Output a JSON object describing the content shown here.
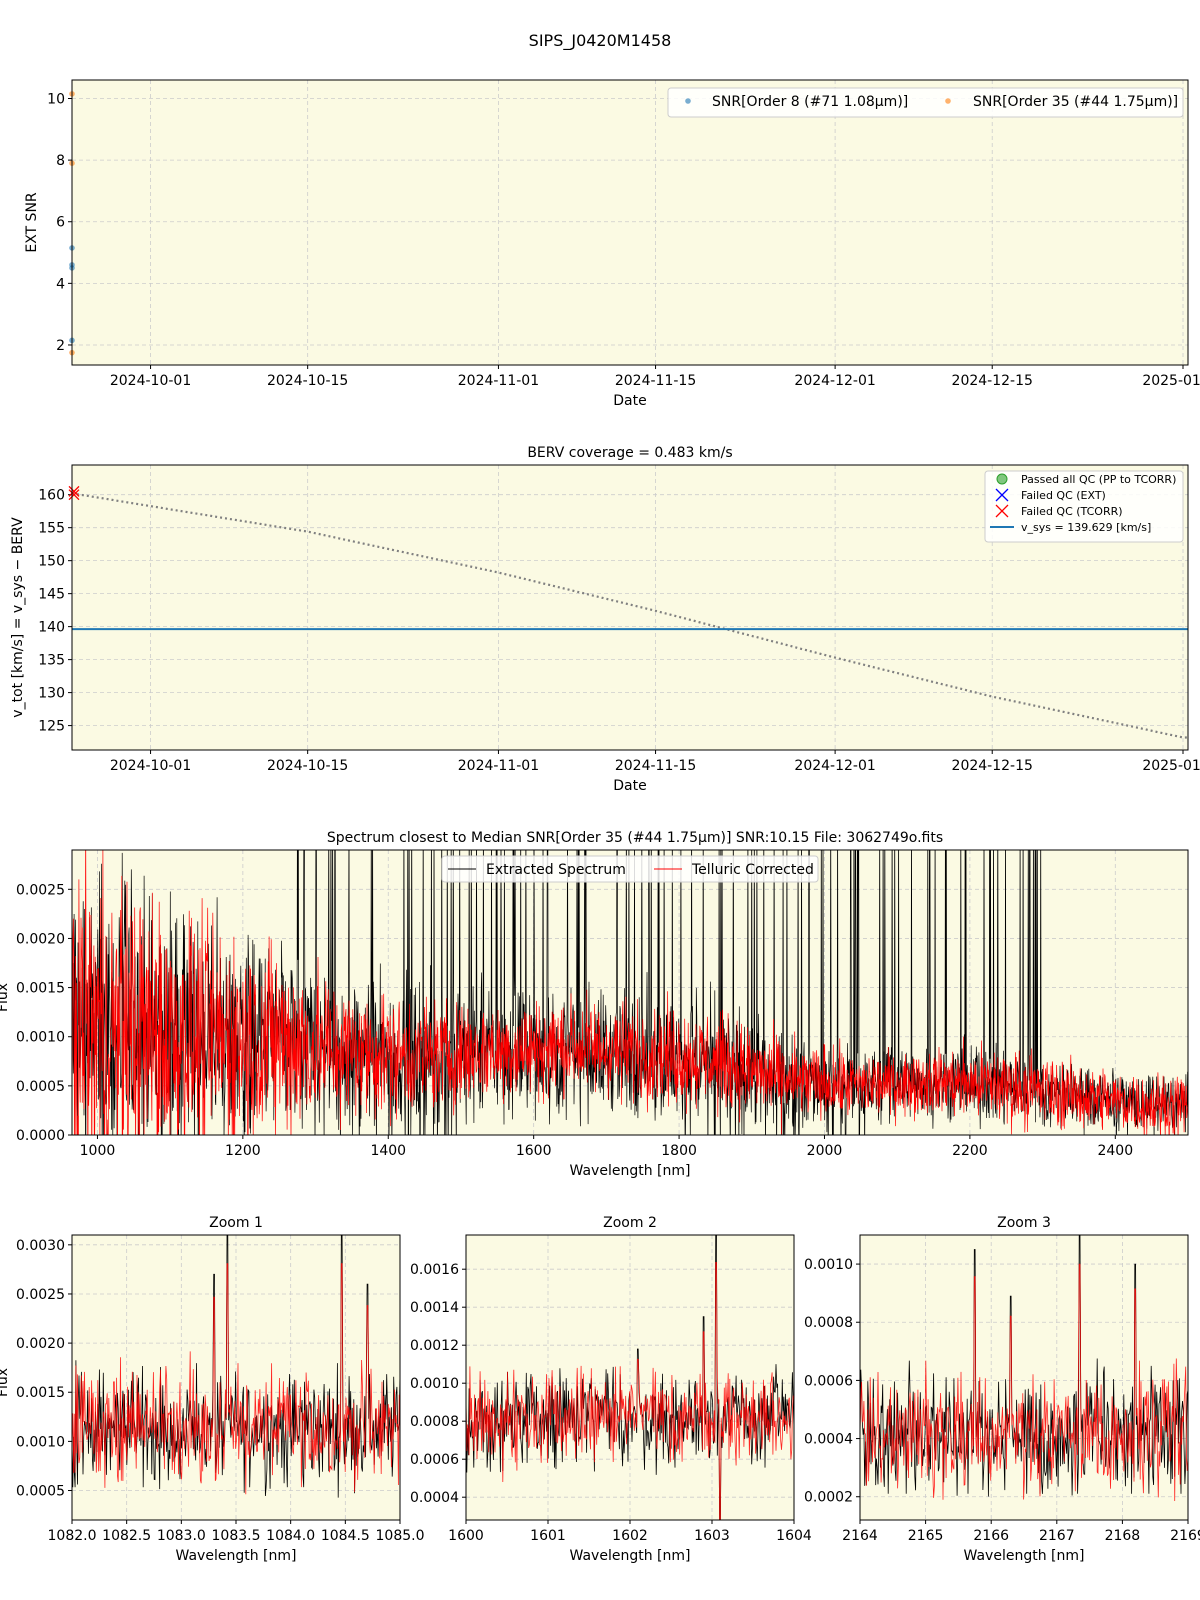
{
  "figure_title": "SIPS_J0420M1458",
  "colors": {
    "axes_bg": "#fbfae3",
    "grid": "#cccccc",
    "snr_order8": "#1f77b4",
    "snr_order35": "#ff7f0e",
    "vsys_line": "#1f77b4",
    "berv_curve": "#808080",
    "extracted": "#000000",
    "telluric": "#ff0000",
    "passed_qc": "#2ca02c",
    "failed_ext": "#0000ff",
    "failed_tcorr": "#ff0000"
  },
  "chart_data": [
    {
      "id": "snr",
      "type": "scatter",
      "title": "",
      "xlabel": "Date",
      "ylabel": "EXT SNR",
      "x_range": [
        "2024-09-24",
        "2025-01-01"
      ],
      "ylim": [
        1.35,
        10.6
      ],
      "x_ticks": [
        "2024-10-01",
        "2024-10-15",
        "2024-11-01",
        "2024-11-15",
        "2024-12-01",
        "2024-12-15",
        "2025-01-01"
      ],
      "x_tick_labels": [
        "2024-10-01",
        "2024-10-15",
        "2024-11-01",
        "2024-11-15",
        "2024-12-01",
        "2024-12-15",
        "2025-01-01"
      ],
      "y_ticks": [
        2,
        4,
        6,
        8,
        10
      ],
      "grid": true,
      "legend_position": "top-right",
      "series": [
        {
          "name": "SNR[Order 8 (#71 1.08μm)]",
          "color": "#1f77b4",
          "x": [
            "2024-09-24",
            "2024-09-24",
            "2024-09-24",
            "2024-09-24"
          ],
          "y": [
            5.15,
            4.6,
            4.5,
            2.15
          ]
        },
        {
          "name": "SNR[Order 35 (#44 1.75μm)]",
          "color": "#ff7f0e",
          "x": [
            "2024-09-24",
            "2024-09-24",
            "2024-09-24"
          ],
          "y": [
            10.15,
            7.9,
            1.75
          ]
        }
      ]
    },
    {
      "id": "berv",
      "type": "line",
      "title": "BERV coverage = 0.483 km/s",
      "xlabel": "Date",
      "ylabel": "v_tot [km/s] = v_sys − BERV",
      "x_range": [
        "2024-09-24",
        "2025-01-01"
      ],
      "ylim": [
        121.3,
        164.5
      ],
      "x_ticks": [
        "2024-10-01",
        "2024-10-15",
        "2024-11-01",
        "2024-11-15",
        "2024-12-01",
        "2024-12-15",
        "2025-01-01"
      ],
      "x_tick_labels": [
        "2024-10-01",
        "2024-10-15",
        "2024-11-01",
        "2024-11-15",
        "2024-12-01",
        "2024-12-15",
        "2025-01-01"
      ],
      "y_ticks": [
        125,
        130,
        135,
        140,
        145,
        150,
        155,
        160
      ],
      "grid": true,
      "legend_position": "top-right",
      "legend": [
        "Passed all QC (PP to TCORR)",
        "Failed QC (EXT)",
        "Failed QC (TCORR)",
        "v_sys = 139.629 [km/s]"
      ],
      "vsys": 139.629,
      "berv_curve": {
        "x": [
          "2024-09-24",
          "2024-10-15",
          "2024-11-01",
          "2024-11-15",
          "2024-12-01",
          "2024-12-15",
          "2025-01-01"
        ],
        "y": [
          160.2,
          154.4,
          148.2,
          142.4,
          135.3,
          129.4,
          123.2
        ]
      },
      "failed_tcorr_points": {
        "x": [
          "2024-09-24",
          "2024-09-24"
        ],
        "y": [
          160.5,
          160.0
        ]
      }
    },
    {
      "id": "spectrum",
      "type": "line",
      "title": "Spectrum closest to Median SNR[Order 35 (#44 1.75μm)]     SNR:10.15     File: 3062749o.fits",
      "xlabel": "Wavelength [nm]",
      "ylabel": "Flux",
      "xlim": [
        965,
        2500
      ],
      "ylim": [
        0,
        0.0029
      ],
      "x_ticks": [
        1000,
        1200,
        1400,
        1600,
        1800,
        2000,
        2200,
        2400
      ],
      "y_ticks": [
        0.0,
        0.0005,
        0.001,
        0.0015,
        0.002,
        0.0025
      ],
      "y_tick_labels": [
        "0.0000",
        "0.0005",
        "0.0010",
        "0.0015",
        "0.0020",
        "0.0025"
      ],
      "grid": true,
      "legend_position": "top-center",
      "series": [
        {
          "name": "Extracted Spectrum",
          "color": "#000000",
          "x": [
            965,
            1100,
            1250,
            1350,
            1450,
            1550,
            1650,
            1750,
            1850,
            1950,
            2050,
            2150,
            2250,
            2350,
            2450,
            2490
          ],
          "mean": [
            0.0011,
            0.001,
            0.00095,
            0.0008,
            0.00078,
            0.00085,
            0.00085,
            0.0008,
            0.0007,
            0.00055,
            0.0005,
            0.00055,
            0.0005,
            0.0004,
            0.0003,
            0.0003
          ],
          "spread": [
            0.0011,
            0.0008,
            0.0006,
            0.0005,
            0.00045,
            0.0004,
            0.0004,
            0.0004,
            0.0004,
            0.0003,
            0.00025,
            0.00025,
            0.00025,
            0.0002,
            0.0002,
            0.0002
          ]
        },
        {
          "name": "Telluric Corrected",
          "color": "#ff0000",
          "x": [
            965,
            1100,
            1250,
            1350,
            1450,
            1550,
            1650,
            1750,
            1850,
            1950,
            2050,
            2150,
            2250,
            2350,
            2450,
            2490
          ],
          "mean": [
            0.0011,
            0.001,
            0.00095,
            0.00085,
            0.0008,
            0.00085,
            0.0009,
            0.00085,
            0.00075,
            0.00055,
            0.0005,
            0.00055,
            0.0005,
            0.0004,
            0.0003,
            0.0003
          ],
          "spread": [
            0.0011,
            0.0008,
            0.0006,
            0.0004,
            0.00035,
            0.0003,
            0.0003,
            0.0003,
            0.0003,
            0.00025,
            0.0002,
            0.0002,
            0.00025,
            0.0002,
            0.0002,
            0.0002
          ]
        }
      ]
    },
    {
      "id": "zoom1",
      "type": "line",
      "title": "Zoom 1",
      "xlabel": "Wavelength [nm]",
      "ylabel": "Flux",
      "xlim": [
        1082.0,
        1085.0
      ],
      "ylim": [
        0.0002,
        0.0031
      ],
      "x_ticks": [
        1082.0,
        1082.5,
        1083.0,
        1083.5,
        1084.0,
        1084.5,
        1085.0
      ],
      "x_tick_labels": [
        "1082.0",
        "1082.5",
        "1083.0",
        "1083.5",
        "1084.0",
        "1084.5",
        "1085.0"
      ],
      "y_ticks": [
        0.0005,
        0.001,
        0.0015,
        0.002,
        0.0025,
        0.003
      ],
      "y_tick_labels": [
        "0.0005",
        "0.0010",
        "0.0015",
        "0.0020",
        "0.0025",
        "0.0030"
      ],
      "grid": true,
      "mean": 0.00115,
      "spread": 0.00028,
      "peaks": [
        [
          1083.3,
          0.0027
        ],
        [
          1083.42,
          0.0031
        ],
        [
          1084.47,
          0.0031
        ],
        [
          1084.7,
          0.0026
        ]
      ]
    },
    {
      "id": "zoom2",
      "type": "line",
      "title": "Zoom 2",
      "xlabel": "Wavelength [nm]",
      "ylabel": "",
      "xlim": [
        1600,
        1604
      ],
      "ylim": [
        0.00028,
        0.00178
      ],
      "x_ticks": [
        1600,
        1601,
        1602,
        1603,
        1604
      ],
      "x_tick_labels": [
        "1600",
        "1601",
        "1602",
        "1603",
        "1604"
      ],
      "y_ticks": [
        0.0004,
        0.0006,
        0.0008,
        0.001,
        0.0012,
        0.0014,
        0.0016
      ],
      "y_tick_labels": [
        "0.0004",
        "0.0006",
        "0.0008",
        "0.0010",
        "0.0012",
        "0.0014",
        "0.0016"
      ],
      "grid": true,
      "mean": 0.00082,
      "spread": 0.00012,
      "peaks": [
        [
          1602.1,
          0.00118
        ],
        [
          1602.9,
          0.00135
        ],
        [
          1603.05,
          0.00178
        ],
        [
          1603.1,
          0.00028
        ]
      ]
    },
    {
      "id": "zoom3",
      "type": "line",
      "title": "Zoom 3",
      "xlabel": "Wavelength [nm]",
      "ylabel": "",
      "xlim": [
        2164,
        2169
      ],
      "ylim": [
        0.00012,
        0.0011
      ],
      "x_ticks": [
        2164,
        2165,
        2166,
        2167,
        2168,
        2169
      ],
      "x_tick_labels": [
        "2164",
        "2165",
        "2166",
        "2167",
        "2168",
        "2169"
      ],
      "y_ticks": [
        0.0002,
        0.0004,
        0.0006,
        0.0008,
        0.001
      ],
      "y_tick_labels": [
        "0.0002",
        "0.0004",
        "0.0006",
        "0.0008",
        "0.0010"
      ],
      "grid": true,
      "mean": 0.00043,
      "spread": 0.0001,
      "peaks": [
        [
          2165.75,
          0.00105
        ],
        [
          2166.3,
          0.00089
        ],
        [
          2167.35,
          0.0011
        ],
        [
          2168.2,
          0.001
        ]
      ]
    }
  ]
}
